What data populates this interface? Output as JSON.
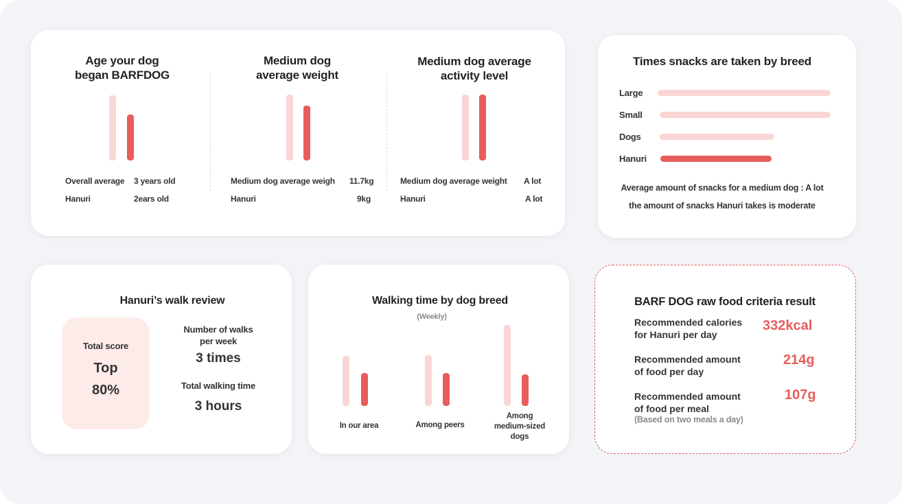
{
  "colors": {
    "accent": "#e85c5c",
    "accent_light": "#f9d6d4",
    "background": "#f3f4f7",
    "score_box": "#fdebea"
  },
  "stats": {
    "age": {
      "title_line1": "Age your dog",
      "title_line2": "began BARFDOG",
      "bars": [
        {
          "series": "Overall average",
          "level": 1.0
        },
        {
          "series": "Hanuri",
          "level": 0.7
        }
      ],
      "rows": [
        {
          "label": "Overall average",
          "value": "3 years old"
        },
        {
          "label": "Hanuri",
          "value": "2ears old"
        }
      ]
    },
    "weight": {
      "title_line1": "Medium dog",
      "title_line2": "average weight",
      "bars": [
        {
          "series": "Medium dog average weigh",
          "value": 11.7
        },
        {
          "series": "Hanuri",
          "value": 9
        }
      ],
      "rows": [
        {
          "label": "Medium dog average weigh",
          "value": "11.7kg"
        },
        {
          "label": "Hanuri",
          "value": "9kg"
        }
      ]
    },
    "activity": {
      "title_line1": "Medium dog average",
      "title_line2": "activity level",
      "bars": [
        {
          "series": "Medium dog average weight",
          "level": 1.0
        },
        {
          "series": "Hanuri",
          "level": 1.0
        }
      ],
      "rows": [
        {
          "label": "Medium dog average weight",
          "value": "A lot"
        },
        {
          "label": "Hanuri",
          "value": "A lot"
        }
      ]
    }
  },
  "snacks": {
    "title": "Times snacks are taken by breed",
    "rows": [
      {
        "label": "Large",
        "level": 1.0,
        "highlight": false
      },
      {
        "label": "Small",
        "level": 1.0,
        "highlight": false
      },
      {
        "label": "Dogs",
        "level": 0.66,
        "highlight": false
      },
      {
        "label": "Hanuri",
        "level": 0.64,
        "highlight": true
      }
    ],
    "note_line1": "Average amount of snacks for a medium dog : A lot",
    "note_line2": "the amount of snacks Hanuri takes is moderate"
  },
  "walk_review": {
    "title": "Hanuri’s walk review",
    "score_label": "Total score",
    "score_rank": "Top",
    "score_percent": "80%",
    "walks_label_line1": "Number of walks",
    "walks_label_line2": "per week",
    "walks_value": "3 times",
    "time_label": "Total walking time",
    "time_value": "3 hours"
  },
  "walking_time": {
    "title": "Walking time by dog breed",
    "subtitle": "(Weekly)",
    "groups": [
      {
        "label_lines": [
          "In our area"
        ],
        "levels": [
          0.6,
          0.39
        ]
      },
      {
        "label_lines": [
          "Among peers"
        ],
        "levels": [
          0.61,
          0.39
        ]
      },
      {
        "label_lines": [
          "Among",
          "medium-sized",
          "dogs"
        ],
        "levels": [
          1.0,
          0.39
        ]
      }
    ]
  },
  "criteria": {
    "title": "BARF DOG raw food criteria result",
    "items": [
      {
        "label_line1": "Recommended calories",
        "label_line2": "for Hanuri per day",
        "value": "332kcal"
      },
      {
        "label_line1": "Recommended amount",
        "label_line2": "of food per day",
        "value": "214g"
      },
      {
        "label_line1": "Recommended amount",
        "label_line2": "of food per meal",
        "value": "107g"
      }
    ],
    "footnote": "(Based on two meals a day)"
  }
}
